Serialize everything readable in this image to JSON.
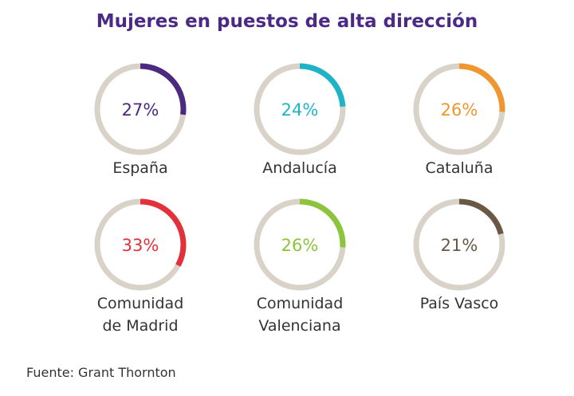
{
  "chart_data": {
    "type": "donut",
    "title": "Mujeres en puestos de alta dirección",
    "track_color": "#d8d2c8",
    "items": [
      {
        "label_lines": [
          "España"
        ],
        "value": 27,
        "value_label": "27%",
        "color": "#4b2a7f"
      },
      {
        "label_lines": [
          "Andalucía"
        ],
        "value": 24,
        "value_label": "24%",
        "color": "#1eb3c7"
      },
      {
        "label_lines": [
          "Cataluña"
        ],
        "value": 26,
        "value_label": "26%",
        "color": "#f0962e"
      },
      {
        "label_lines": [
          "Comunidad",
          "de Madrid"
        ],
        "value": 33,
        "value_label": "33%",
        "color": "#e2313b"
      },
      {
        "label_lines": [
          "Comunidad",
          "Valenciana"
        ],
        "value": 26,
        "value_label": "26%",
        "color": "#8cc43c"
      },
      {
        "label_lines": [
          "País Vasco"
        ],
        "value": 21,
        "value_label": "21%",
        "color": "#6b5744"
      }
    ]
  },
  "source": "Fuente: Grant Thornton"
}
